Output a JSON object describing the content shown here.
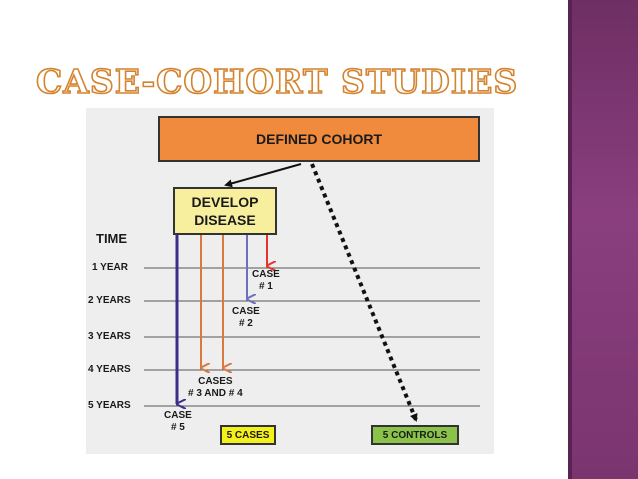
{
  "title": "CASE-COHORT STUDIES",
  "diagram": {
    "cohort_label": "DEFINED COHORT",
    "disease_label": "DEVELOP\nDISEASE",
    "time_label": "TIME",
    "years": [
      "1 YEAR",
      "2 YEARS",
      "3 YEARS",
      "4 YEARS",
      "5 YEARS"
    ],
    "case1": "CASE\n# 1",
    "case2": "CASE\n# 2",
    "cases34": "CASES\n# 3 AND # 4",
    "case5": "CASE\n# 5",
    "cases_box": "5 CASES",
    "controls_box": "5 CONTROLS",
    "colors": {
      "orange": "#f08a3c",
      "red": "#e8332b",
      "purple": "#6f6fc0",
      "navy": "#3a2f86",
      "arrow_orange": "#d9793d",
      "yellow": "#f4f01c",
      "green": "#8bc34a",
      "band": "#7a356f"
    }
  }
}
